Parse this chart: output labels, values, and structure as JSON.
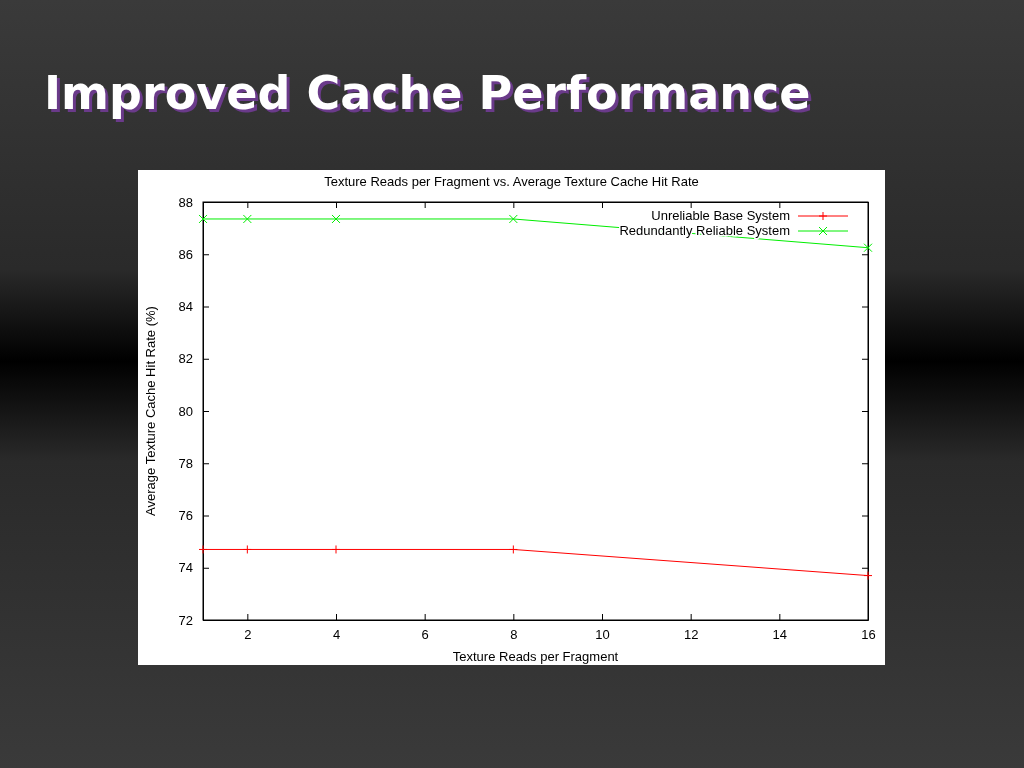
{
  "chart_data": {
    "type": "line",
    "title": "Improved Cache Performance",
    "subtitle": "Texture Reads per Fragment vs. Average Texture Cache Hit Rate",
    "xlabel": "Texture Reads per Fragment",
    "ylabel": "Average Texture Cache Hit Rate (%)",
    "x": [
      1,
      2,
      4,
      8,
      16
    ],
    "series": [
      {
        "name": "Unreliable Base System",
        "color": "#ff0000",
        "values": [
          74.7,
          74.7,
          74.7,
          74.7,
          73.7
        ]
      },
      {
        "name": "Redundantly Reliable System",
        "color": "#00ee00",
        "values": [
          87.35,
          87.35,
          87.35,
          87.35,
          86.25
        ]
      }
    ],
    "xlim": [
      1,
      16
    ],
    "xticks": [
      2,
      4,
      6,
      8,
      10,
      12,
      14,
      16
    ],
    "ylim": [
      72,
      88
    ],
    "yticks": [
      72,
      74,
      76,
      78,
      80,
      82,
      84,
      86,
      88
    ],
    "legend": "top right",
    "marker": "cross",
    "grid": false
  }
}
